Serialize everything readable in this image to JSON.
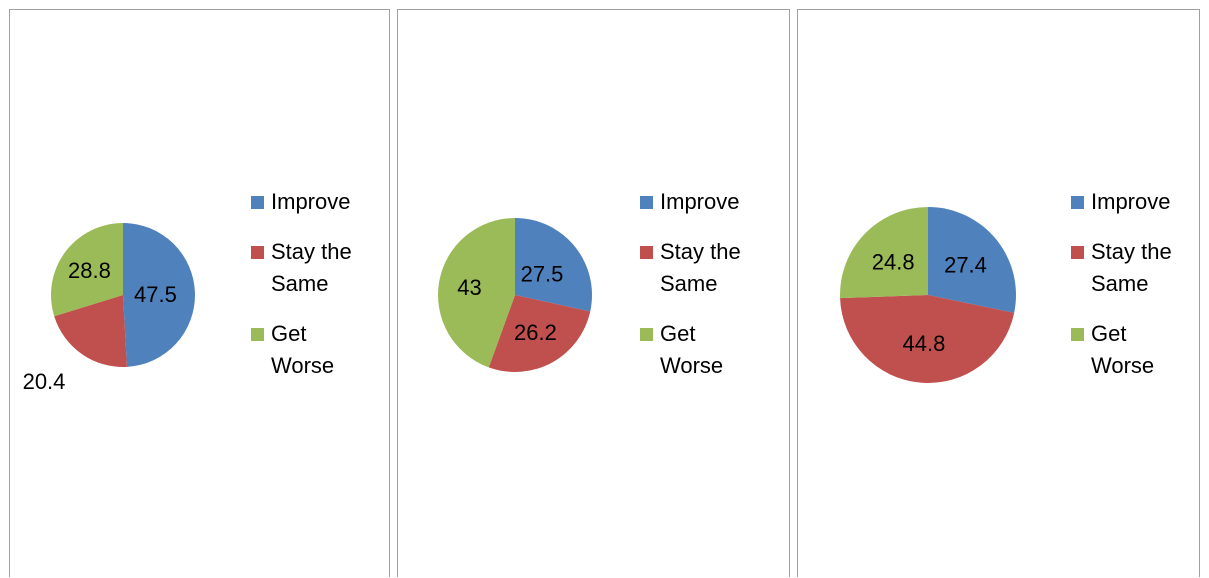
{
  "colors": {
    "improve": "#4f81bd",
    "stay": "#c0504d",
    "worse": "#9bbb59"
  },
  "chart_data": [
    {
      "type": "pie",
      "categories": [
        "Improve",
        "Stay the Same",
        "Get Worse"
      ],
      "values": [
        47.5,
        20.4,
        28.8
      ],
      "legend": "right"
    },
    {
      "type": "pie",
      "categories": [
        "Improve",
        "Stay the Same",
        "Get Worse"
      ],
      "values": [
        27.5,
        26.2,
        43
      ],
      "legend": "right"
    },
    {
      "type": "pie",
      "categories": [
        "Improve",
        "Stay the Same",
        "Get Worse"
      ],
      "values": [
        27.4,
        44.8,
        24.8
      ],
      "legend": "right"
    }
  ],
  "legend": {
    "improve": "Improve",
    "stay": "Stay the Same",
    "worse": "Get Worse"
  }
}
